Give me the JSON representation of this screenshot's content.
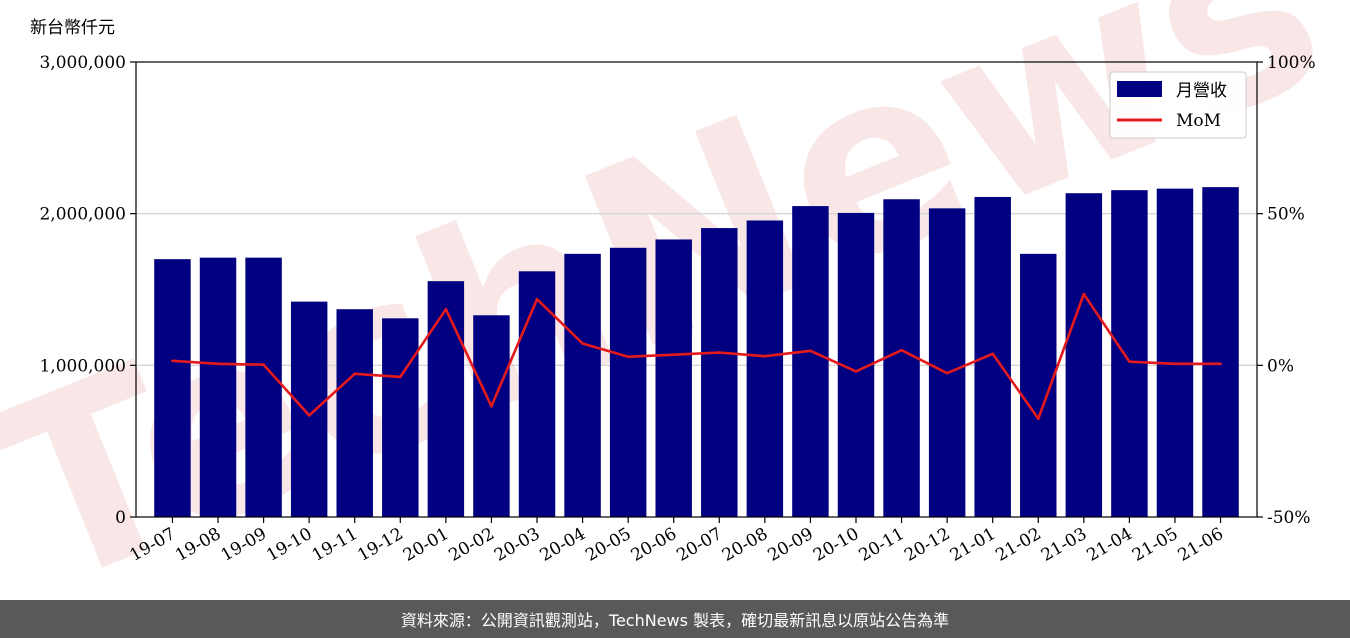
{
  "y_unit_label": "新台幣仟元",
  "footer_text": "資料來源：公開資訊觀測站，TechNews 製表，確切最新訊息以原站公告為準",
  "chart_data": {
    "type": "bar",
    "categories": [
      "19-07",
      "19-08",
      "19-09",
      "19-10",
      "19-11",
      "19-12",
      "20-01",
      "20-02",
      "20-03",
      "20-04",
      "20-05",
      "20-06",
      "20-07",
      "20-08",
      "20-09",
      "20-10",
      "20-11",
      "20-12",
      "21-01",
      "21-02",
      "21-03",
      "21-04",
      "21-05",
      "21-06"
    ],
    "series": [
      {
        "name": "月營收",
        "type": "bar",
        "axis": "left",
        "color": "#000080",
        "values": [
          1700000,
          1710000,
          1710000,
          1420000,
          1370000,
          1310000,
          1555000,
          1330000,
          1620000,
          1735000,
          1775000,
          1830000,
          1905000,
          1955000,
          2050000,
          2005000,
          2095000,
          2035000,
          2110000,
          1735000,
          2135000,
          2155000,
          2165000,
          2175000
        ]
      },
      {
        "name": "MoM",
        "type": "line",
        "axis": "right",
        "color": "#e41a1c",
        "values": [
          1.5,
          0.5,
          0.2,
          -16.5,
          -2.8,
          -3.8,
          18.5,
          -13.5,
          21.8,
          7.2,
          2.8,
          3.5,
          4.2,
          3.0,
          4.8,
          -2.0,
          5.0,
          -2.6,
          3.8,
          -17.6,
          23.5,
          1.2,
          0.5,
          0.5
        ]
      }
    ],
    "y_left": {
      "ylim": [
        0,
        3000000
      ],
      "ticks": [
        0,
        1000000,
        2000000,
        3000000
      ],
      "tick_labels": [
        "0",
        "1,000,000",
        "2,000,000",
        "3,000,000"
      ]
    },
    "y_right": {
      "ylim": [
        -50,
        100
      ],
      "ticks": [
        -50,
        0,
        50,
        100
      ],
      "tick_labels": [
        "-50%",
        "0%",
        "50%",
        "100%"
      ]
    },
    "grid": "horizontal",
    "legend_position": "top-right",
    "watermark_text": "TechNews",
    "watermark_color": "#f2c8c8"
  }
}
